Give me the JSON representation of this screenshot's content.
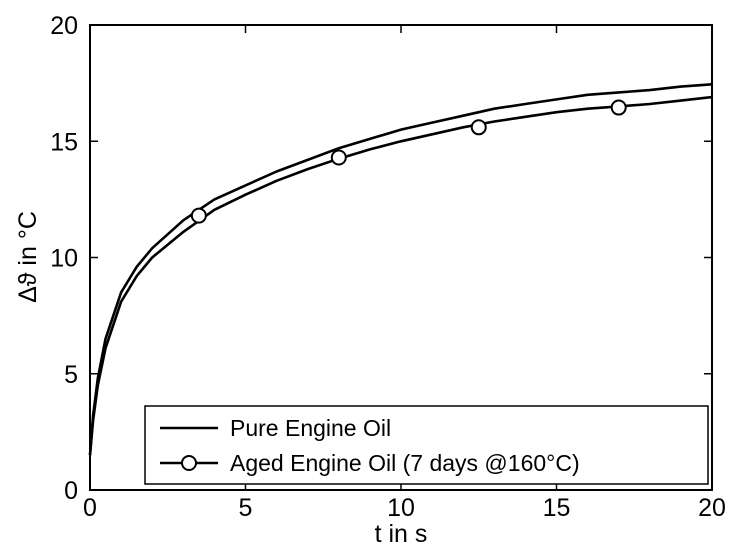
{
  "chart_data": {
    "type": "line",
    "xlabel": "t in s",
    "ylabel": "Δϑ in °C",
    "xlim": [
      0,
      20
    ],
    "ylim": [
      0,
      20
    ],
    "x_ticks": [
      0,
      5,
      10,
      15,
      20
    ],
    "y_ticks": [
      0,
      5,
      10,
      15,
      20
    ],
    "grid": false,
    "legend_position": "bottom-right",
    "series": [
      {
        "name": "Pure Engine Oil",
        "marker": "none",
        "color": "#000000",
        "points": [
          [
            0,
            1.5
          ],
          [
            0.1,
            3.2
          ],
          [
            0.25,
            4.8
          ],
          [
            0.5,
            6.5
          ],
          [
            1,
            8.5
          ],
          [
            1.5,
            9.6
          ],
          [
            2,
            10.4
          ],
          [
            3,
            11.6
          ],
          [
            4,
            12.5
          ],
          [
            5,
            13.1
          ],
          [
            6,
            13.7
          ],
          [
            7,
            14.2
          ],
          [
            8,
            14.7
          ],
          [
            9,
            15.1
          ],
          [
            10,
            15.5
          ],
          [
            11,
            15.8
          ],
          [
            12,
            16.1
          ],
          [
            13,
            16.4
          ],
          [
            14,
            16.6
          ],
          [
            15,
            16.8
          ],
          [
            16,
            17.0
          ],
          [
            17,
            17.1
          ],
          [
            18,
            17.2
          ],
          [
            19,
            17.35
          ],
          [
            20,
            17.45
          ]
        ]
      },
      {
        "name": "Aged Engine Oil (7 days @160°C)",
        "marker": "circle",
        "color": "#000000",
        "points": [
          [
            0,
            1.5
          ],
          [
            0.1,
            3.0
          ],
          [
            0.25,
            4.5
          ],
          [
            0.5,
            6.1
          ],
          [
            1,
            8.1
          ],
          [
            1.5,
            9.2
          ],
          [
            2,
            10.0
          ],
          [
            3,
            11.1
          ],
          [
            4,
            12.05
          ],
          [
            5,
            12.7
          ],
          [
            6,
            13.3
          ],
          [
            7,
            13.8
          ],
          [
            8,
            14.25
          ],
          [
            9,
            14.65
          ],
          [
            10,
            15.0
          ],
          [
            11,
            15.3
          ],
          [
            12,
            15.6
          ],
          [
            13,
            15.85
          ],
          [
            14,
            16.05
          ],
          [
            15,
            16.25
          ],
          [
            16,
            16.4
          ],
          [
            17,
            16.5
          ],
          [
            18,
            16.6
          ],
          [
            19,
            16.75
          ],
          [
            20,
            16.9
          ]
        ],
        "marker_points": [
          [
            3.5,
            11.8
          ],
          [
            8,
            14.3
          ],
          [
            12.5,
            15.6
          ],
          [
            17,
            16.45
          ]
        ]
      }
    ]
  }
}
